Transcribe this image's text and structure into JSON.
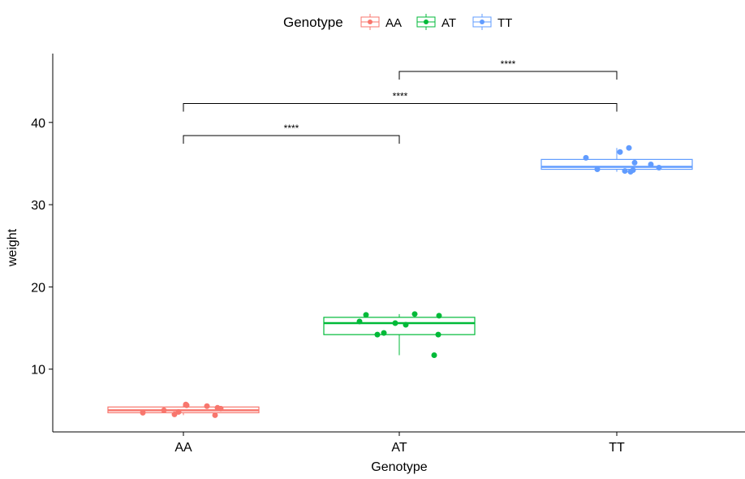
{
  "chart_data": {
    "type": "boxplot",
    "title": "",
    "xlabel": "Genotype",
    "ylabel": "weight",
    "ylim": [
      2.4,
      48.4
    ],
    "yticks": [
      10,
      20,
      30,
      40
    ],
    "grid": false,
    "legend": {
      "title": "Genotype",
      "placement": "top",
      "entries": [
        "AA",
        "AT",
        "TT"
      ]
    },
    "categories": [
      "AA",
      "AT",
      "TT"
    ],
    "colors": {
      "AA": "#F8766D",
      "AT": "#00BA38",
      "TT": "#619CFF"
    },
    "boxes": [
      {
        "name": "AA",
        "min": 4.4,
        "q1": 4.7,
        "median": 5.0,
        "q3": 5.4,
        "max": 5.7
      },
      {
        "name": "AT",
        "min": 11.7,
        "q1": 14.2,
        "median": 15.6,
        "q3": 16.3,
        "max": 16.7
      },
      {
        "name": "TT",
        "min": 34.0,
        "q1": 34.3,
        "median": 34.6,
        "q3": 35.5,
        "max": 36.9
      }
    ],
    "points": {
      "AA": [
        4.7,
        5.0,
        4.5,
        4.8,
        5.6,
        5.5,
        4.4,
        5.3,
        5.2,
        5.7
      ],
      "AT": [
        16.6,
        15.8,
        15.6,
        15.4,
        16.7,
        16.5,
        14.2,
        14.4,
        14.2,
        11.7
      ],
      "TT": [
        35.7,
        36.4,
        36.9,
        35.1,
        34.9,
        34.5,
        34.3,
        34.1,
        34.0,
        34.2
      ]
    },
    "comparisons": [
      {
        "group1": "AA",
        "group2": "AT",
        "y": 38.4,
        "label": "****"
      },
      {
        "group1": "AA",
        "group2": "TT",
        "y": 42.3,
        "label": "****"
      },
      {
        "group1": "AT",
        "group2": "TT",
        "y": 46.2,
        "label": "****"
      }
    ]
  }
}
